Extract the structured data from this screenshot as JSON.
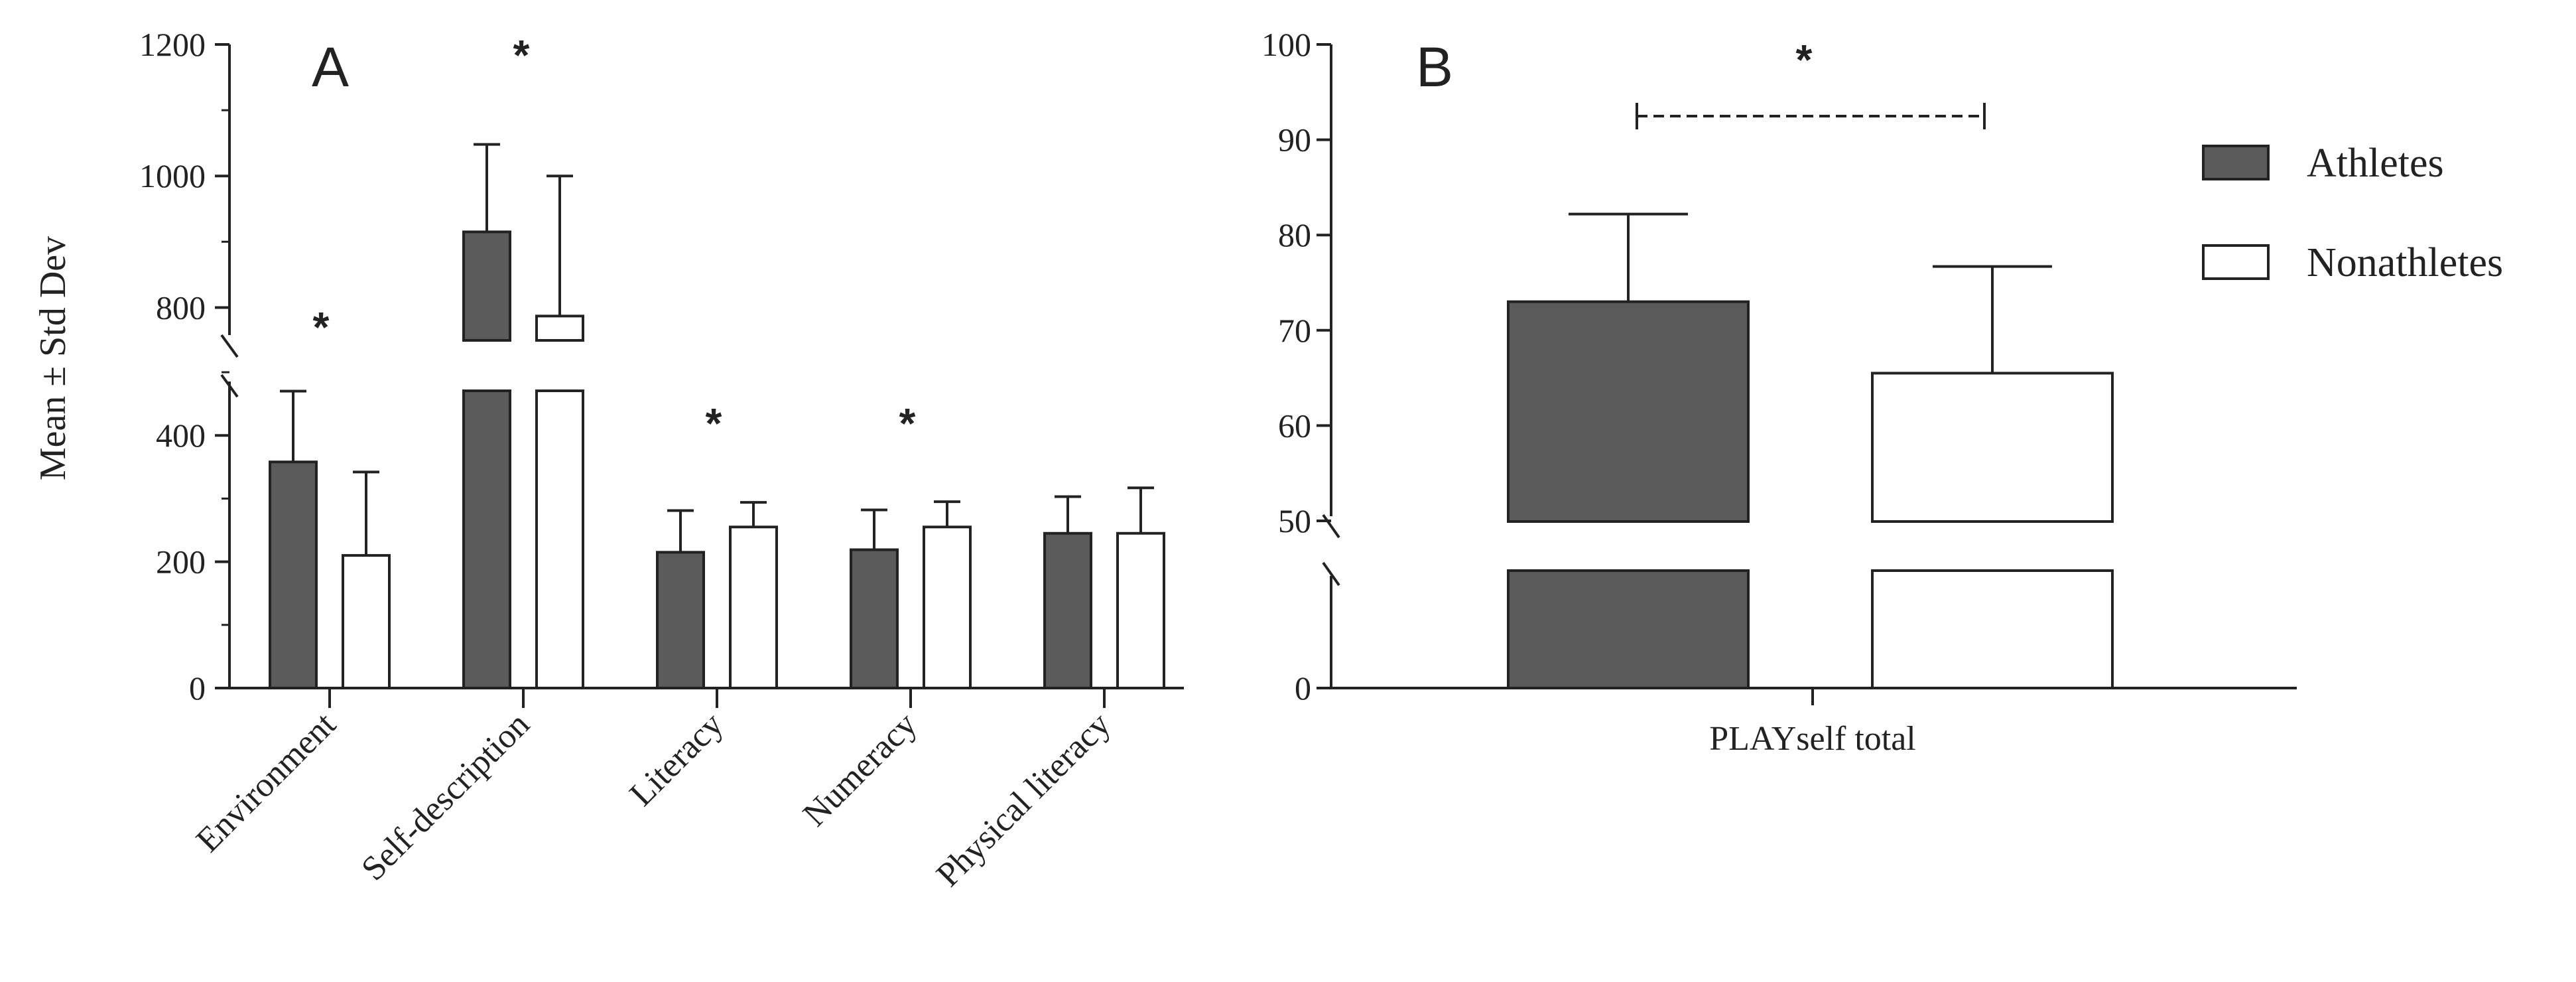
{
  "chart_data": [
    {
      "type": "bar",
      "panel_label": "A",
      "ylabel": "Mean ± Std Dev",
      "categories": [
        "Environment",
        "Self-description",
        "Literacy",
        "Numeracy",
        "Physical literacy"
      ],
      "series": [
        {
          "name": "Athletes",
          "color": "#5a5a5a",
          "values": [
            358,
            915,
            215,
            219,
            245
          ],
          "error": [
            112,
            133,
            66,
            63,
            58
          ]
        },
        {
          "name": "Nonathletes",
          "color": "#ffffff",
          "values": [
            210,
            787,
            255,
            255,
            245
          ],
          "error": [
            132,
            213,
            39,
            40,
            72
          ]
        }
      ],
      "y_axis": {
        "broken": true,
        "lower_segment": {
          "range": [
            0,
            500
          ],
          "ticks": [
            "0",
            "200",
            "400"
          ]
        },
        "upper_segment": {
          "range": [
            750,
            1200
          ],
          "ticks": [
            "800",
            "1000",
            "1200"
          ]
        }
      },
      "significance_markers": [
        {
          "category": "Environment",
          "label": "*"
        },
        {
          "category": "Self-description",
          "label": "*"
        },
        {
          "category": "Literacy",
          "label": "*"
        },
        {
          "category": "Numeracy",
          "label": "*"
        }
      ]
    },
    {
      "type": "bar",
      "panel_label": "B",
      "categories": [
        "PLAYself total"
      ],
      "series": [
        {
          "name": "Athletes",
          "color": "#5a5a5a",
          "values": [
            73
          ],
          "error": [
            9.2
          ]
        },
        {
          "name": "Nonathletes",
          "color": "#ffffff",
          "values": [
            65.5
          ],
          "error": [
            11.2
          ]
        }
      ],
      "y_axis": {
        "broken": true,
        "lower_segment": {
          "range": [
            0,
            12
          ],
          "ticks": [
            "0"
          ]
        },
        "upper_segment": {
          "range": [
            50,
            100
          ],
          "ticks": [
            "50",
            "60",
            "70",
            "80",
            "90",
            "100"
          ]
        }
      },
      "significance_markers": [
        {
          "label": "*",
          "between": [
            "Athletes",
            "Nonathletes"
          ]
        }
      ]
    }
  ],
  "legend": {
    "position": "right",
    "items": [
      {
        "name": "Athletes",
        "color": "#5a5a5a"
      },
      {
        "name": "Nonathletes",
        "color": "#ffffff"
      }
    ]
  }
}
